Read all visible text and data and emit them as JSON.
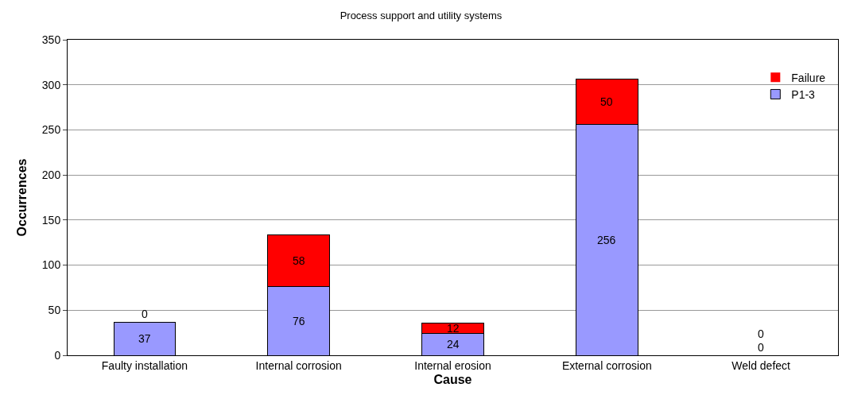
{
  "chart_data": {
    "type": "bar",
    "title": "Process support and utility systems",
    "xlabel": "Cause",
    "ylabel": "Occurrences",
    "categories": [
      "Faulty installation",
      "Internal corrosion",
      "Internal erosion",
      "External corrosion",
      "Weld defect"
    ],
    "stacked": true,
    "data_labels": true,
    "grid": "y",
    "legend": "top right",
    "ylim": [
      0,
      350
    ],
    "yticks": [
      0,
      50,
      100,
      150,
      200,
      250,
      300,
      350
    ],
    "series": [
      {
        "name": "P1-3",
        "color": "#9999ff",
        "values": [
          37,
          76,
          24,
          256,
          0
        ]
      },
      {
        "name": "Failure",
        "color": "#ff0000",
        "values": [
          0,
          58,
          12,
          50,
          0
        ]
      }
    ]
  }
}
